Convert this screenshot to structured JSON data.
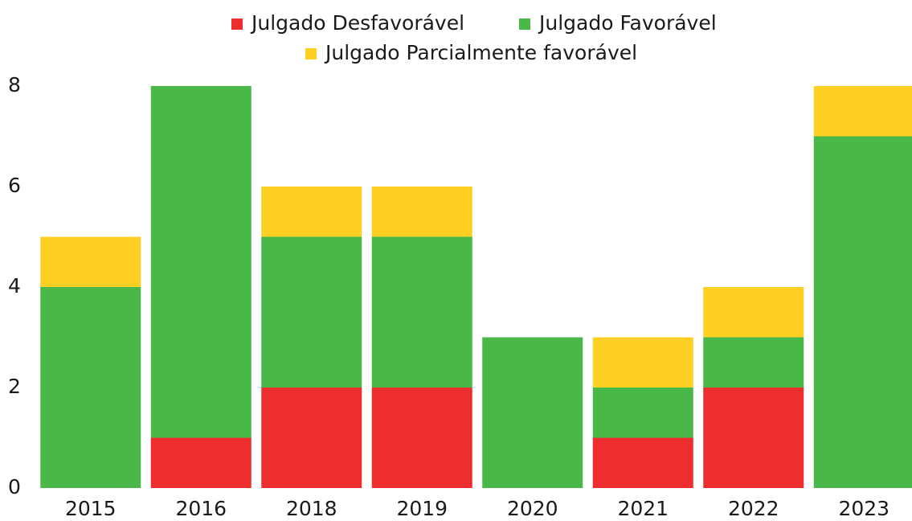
{
  "chart_data": {
    "type": "stacked_bar",
    "categories": [
      "2015",
      "2016",
      "2018",
      "2019",
      "2020",
      "2021",
      "2022",
      "2023"
    ],
    "series": [
      {
        "name": "Julgado Desfavorável",
        "color": "#ee2e2e",
        "values": [
          0,
          1,
          2,
          2,
          0,
          1,
          2,
          0
        ]
      },
      {
        "name": "Julgado Favorável",
        "color": "#4ab849",
        "values": [
          4,
          7,
          3,
          3,
          3,
          1,
          1,
          7
        ]
      },
      {
        "name": "Julgado Parcialmente favorável",
        "color": "#fdd023",
        "values": [
          1,
          0,
          1,
          1,
          0,
          1,
          1,
          1
        ]
      }
    ],
    "ylim": [
      0,
      8
    ],
    "yticks": [
      0,
      2,
      4,
      6,
      8
    ],
    "grid": false,
    "legend": "top"
  }
}
